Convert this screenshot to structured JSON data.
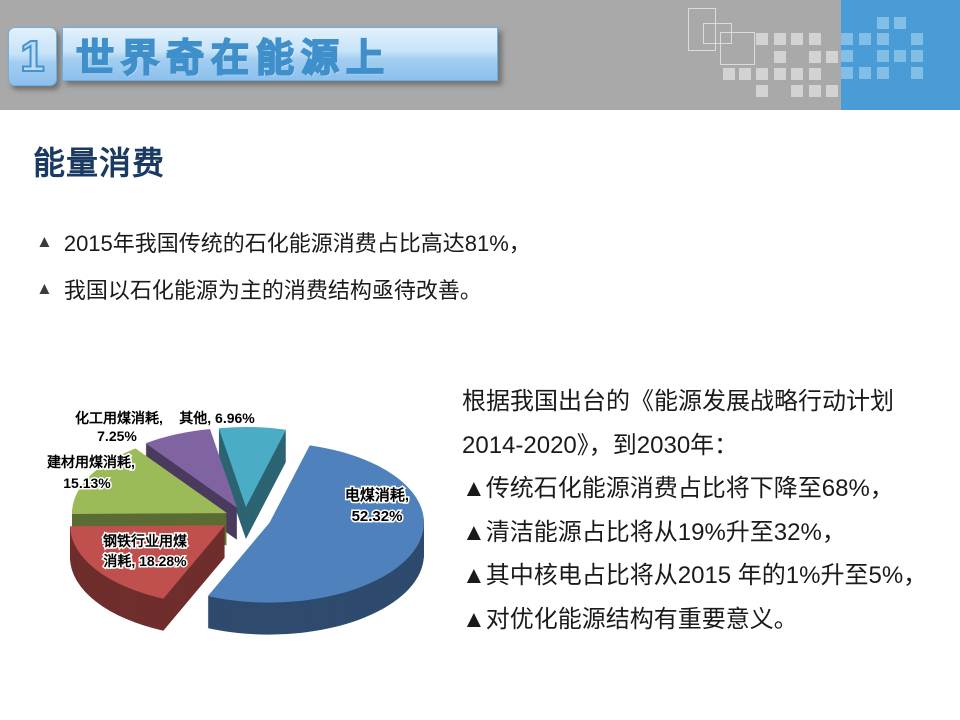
{
  "slide": {
    "number_badge": "1",
    "title": "世界奇在能源上",
    "section_heading": "能量消费",
    "bullets": [
      {
        "marker": "▲",
        "text": "2015年我国传统的石化能源消费占比高达81%，"
      },
      {
        "marker": "▲",
        "text": "我国以石化能源为主的消费结构亟待改善。"
      }
    ],
    "right_panel_lines": [
      "根据我国出台的《能源发展战略行动计划",
      "2014-2020》，到2030年：",
      "▲传统石化能源消费占比将下降至68%，",
      "▲清洁能源占比将从19%升至32%，",
      "▲其中核电占比将从2015 年的1%升至5%，",
      "▲对优化能源结构有重要意义。"
    ]
  },
  "chart_data": {
    "type": "pie",
    "style": "3d-exploded",
    "title": "",
    "unit": "%",
    "direction": "clockwise",
    "start_angle_deg": 15,
    "legend": "none",
    "labels": "category-and-percent",
    "slices": [
      {
        "label": "电煤消耗",
        "value": 52.32,
        "color": "#4F81BD",
        "label_lines": [
          "电煤消耗,",
          "52.32%"
        ]
      },
      {
        "label": "钢铁行业用煤消耗",
        "value": 18.28,
        "color": "#C0504D",
        "label_lines": [
          "钢铁行业用煤",
          "消耗, 18.28%"
        ]
      },
      {
        "label": "建材用煤消耗",
        "value": 15.13,
        "color": "#9BBB59",
        "label_lines": [
          "建材用煤消耗,",
          "15.13%"
        ]
      },
      {
        "label": "化工用煤消耗",
        "value": 7.25,
        "color": "#8064A2",
        "label_lines": [
          "化工用煤消耗,",
          "7.25%"
        ]
      },
      {
        "label": "其他",
        "value": 6.96,
        "color": "#4BACC6",
        "label_lines": [
          "其他, 6.96%"
        ]
      }
    ]
  },
  "colors": {
    "header_gray": "#A9A9A9",
    "header_blue_panel": "#4A9CD6",
    "banner_outline_blue": "#3F8FCB",
    "heading_navy": "#1B3A61",
    "body_text": "#1A1A1A"
  }
}
